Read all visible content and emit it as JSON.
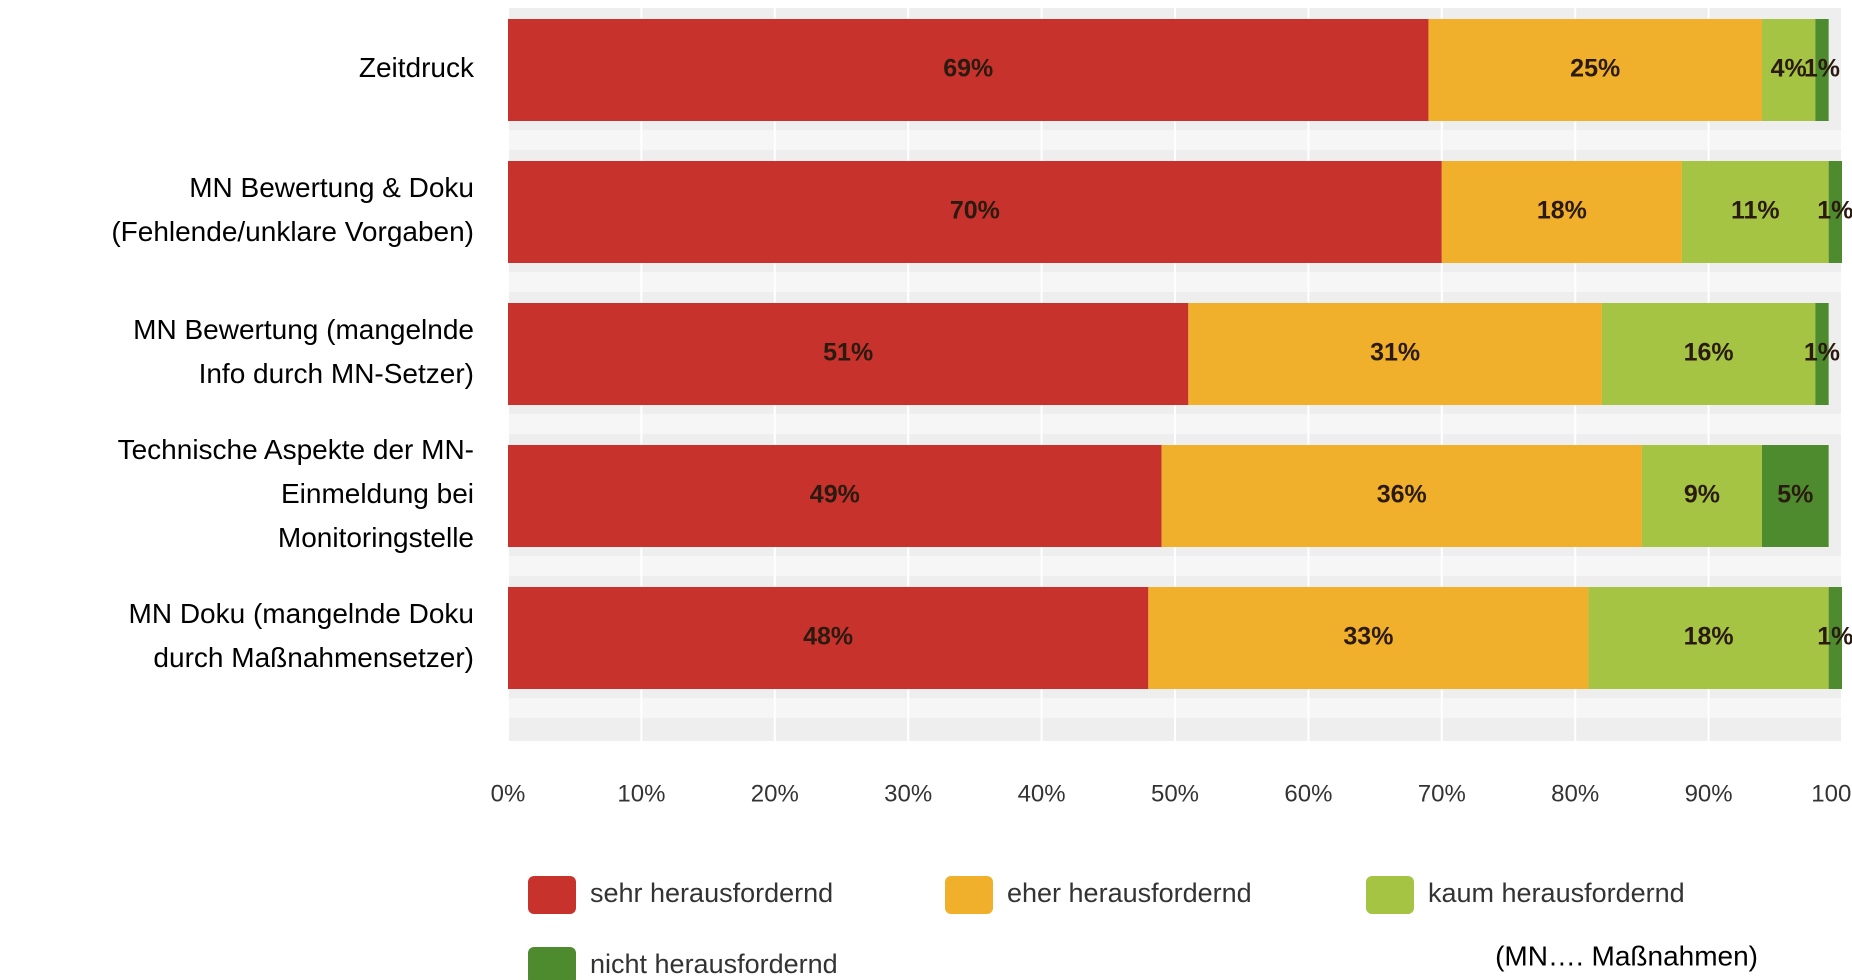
{
  "chart_data": {
    "type": "stacked-bar-horizontal",
    "categories": [
      "Zeitdruck",
      "MN Bewertung & Doku\n(Fehlende/unklare Vorgaben)",
      "MN Bewertung (mangelnde\nInfo durch MN-Setzer)",
      "Technische Aspekte der MN-\nEinmeldung bei\nMonitoringstelle",
      "MN Doku (mangelnde Doku\ndurch Maßnahmensetzer)"
    ],
    "series": [
      {
        "name": "sehr herausfordernd",
        "color": "#c8322d",
        "values": [
          69,
          70,
          51,
          49,
          48
        ],
        "value_labels": [
          "69%",
          "70%",
          "51%",
          "49%",
          "48%"
        ]
      },
      {
        "name": "eher herausfordernd",
        "color": "#f0b02c",
        "values": [
          25,
          18,
          31,
          36,
          33
        ],
        "value_labels": [
          "25%",
          "18%",
          "31%",
          "36%",
          "33%"
        ]
      },
      {
        "name": "kaum herausfordernd",
        "color": "#a5c443",
        "values": [
          4,
          11,
          16,
          9,
          18
        ],
        "value_labels": [
          "4%",
          "11%",
          "16%",
          "9%",
          "18%"
        ]
      },
      {
        "name": "nicht herausfordernd",
        "color": "#4e8a2e",
        "values": [
          1,
          1,
          1,
          5,
          1
        ],
        "value_labels": [
          "1%",
          "1%",
          "1%",
          "5%",
          "1%"
        ]
      }
    ],
    "xlim": [
      0,
      100
    ],
    "xticks": [
      {
        "value": 0,
        "label": "0%"
      },
      {
        "value": 10,
        "label": "10%"
      },
      {
        "value": 20,
        "label": "20%"
      },
      {
        "value": 30,
        "label": "30%"
      },
      {
        "value": 40,
        "label": "40%"
      },
      {
        "value": 50,
        "label": "50%"
      },
      {
        "value": 60,
        "label": "60%"
      },
      {
        "value": 70,
        "label": "70%"
      },
      {
        "value": 80,
        "label": "80%"
      },
      {
        "value": 90,
        "label": "90%"
      },
      {
        "value": 100,
        "label": "100%"
      }
    ],
    "grid": true,
    "annotation": "(MN…. Maßnahmen)"
  }
}
